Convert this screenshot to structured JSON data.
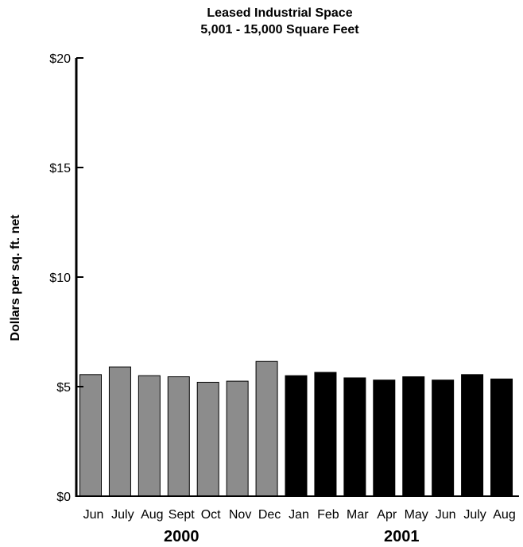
{
  "chart_data": {
    "type": "bar",
    "title": [
      "Leased Industrial Space",
      "5,001 - 15,000 Square Feet"
    ],
    "ylabel": "Dollars per sq. ft. net",
    "xlabel": "",
    "ylim": [
      0,
      20
    ],
    "yticks": [
      0,
      5,
      10,
      15,
      20
    ],
    "ytick_labels": [
      "$0",
      "$5",
      "$10",
      "$15",
      "$20"
    ],
    "categories": [
      "Jun",
      "July",
      "Aug",
      "Sept",
      "Oct",
      "Nov",
      "Dec",
      "Jan",
      "Feb",
      "Mar",
      "Apr",
      "May",
      "Jun",
      "July",
      "Aug"
    ],
    "values": [
      5.55,
      5.9,
      5.5,
      5.45,
      5.2,
      5.25,
      6.15,
      5.5,
      5.65,
      5.4,
      5.3,
      5.45,
      5.3,
      5.55,
      5.35
    ],
    "groups": [
      {
        "label": "2000",
        "start": 0,
        "end": 6,
        "color": "#8c8c8c"
      },
      {
        "label": "2001",
        "start": 7,
        "end": 14,
        "color": "#000000"
      }
    ],
    "grid": false,
    "legend": "none"
  }
}
